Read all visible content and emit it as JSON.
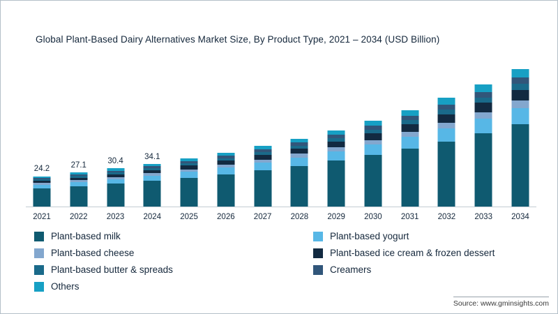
{
  "source_text": "Source: www.gminsights.com",
  "chart_data": {
    "type": "bar",
    "stacked": true,
    "title": "Global Plant-Based Dairy Alternatives Market Size, By Product Type, 2021 – 2034 (USD Billion)",
    "unit": "USD Billion",
    "grid": false,
    "legend_position": "bottom",
    "ylim": [
      0,
      115
    ],
    "categories": [
      "2021",
      "2022",
      "2023",
      "2024",
      "2025",
      "2026",
      "2027",
      "2028",
      "2029",
      "2030",
      "2031",
      "2032",
      "2033",
      "2034"
    ],
    "totals": [
      24.2,
      27.1,
      30.4,
      34.1,
      38.3,
      43.0,
      48.4,
      54.2,
      60.8,
      68.4,
      76.9,
      86.5,
      97.2,
      109.2
    ],
    "data_labels": [
      "24.2",
      "27.1",
      "30.4",
      "34.1",
      null,
      null,
      null,
      null,
      null,
      null,
      null,
      null,
      null,
      null
    ],
    "series": [
      {
        "name": "Plant-based milk",
        "color": "#0f5a70",
        "values": [
          14.5,
          16.3,
          18.2,
          20.5,
          23.0,
          25.8,
          29.0,
          32.5,
          36.5,
          41.0,
          46.1,
          51.8,
          58.3,
          65.5
        ]
      },
      {
        "name": "Plant-based yogurt",
        "color": "#57b7e6",
        "values": [
          2.9,
          3.3,
          3.6,
          4.1,
          4.6,
          5.2,
          5.8,
          6.5,
          7.3,
          8.2,
          9.2,
          10.4,
          11.7,
          13.1
        ]
      },
      {
        "name": "Plant-based cheese",
        "color": "#83a7ce",
        "values": [
          1.3,
          1.5,
          1.7,
          1.9,
          2.1,
          2.4,
          2.7,
          3.0,
          3.3,
          3.8,
          4.2,
          4.8,
          5.3,
          6.0
        ]
      },
      {
        "name": "Plant-based ice cream & frozen dessert",
        "color": "#122a41",
        "values": [
          1.8,
          2.0,
          2.3,
          2.6,
          2.9,
          3.2,
          3.6,
          4.1,
          4.6,
          5.1,
          5.8,
          6.5,
          7.3,
          8.2
        ]
      },
      {
        "name": "Plant-based butter & spreads",
        "color": "#1a6a8a",
        "values": [
          1.1,
          1.2,
          1.4,
          1.5,
          1.7,
          1.9,
          2.2,
          2.4,
          2.7,
          3.1,
          3.5,
          3.9,
          4.4,
          4.9
        ]
      },
      {
        "name": "Creamers",
        "color": "#31567a",
        "values": [
          1.1,
          1.2,
          1.4,
          1.5,
          1.7,
          1.9,
          2.2,
          2.4,
          2.7,
          3.1,
          3.5,
          3.9,
          4.4,
          4.9
        ]
      },
      {
        "name": "Others",
        "color": "#17a0c4",
        "values": [
          1.5,
          1.6,
          1.8,
          2.0,
          2.3,
          2.6,
          2.9,
          3.3,
          3.7,
          4.1,
          4.6,
          5.2,
          5.8,
          6.6
        ]
      }
    ]
  }
}
